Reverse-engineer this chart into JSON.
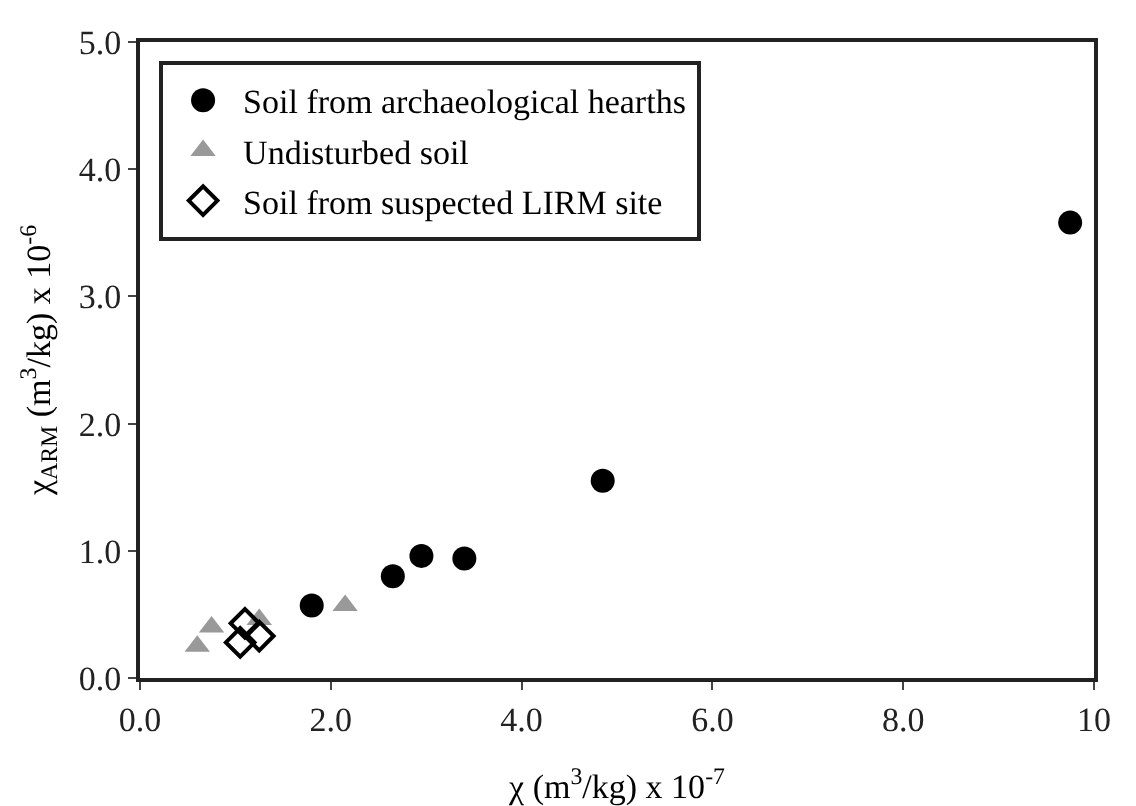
{
  "chart_data": {
    "type": "scatter",
    "xlabel": "χ (m$^{3}$/kg) x 10$^{-7}$",
    "ylabel": "χ$_{ARM}$ (m$^{3}$/kg) x 10$^{-6}$",
    "xlim": [
      0,
      10
    ],
    "ylim": [
      0,
      5
    ],
    "xticks": [
      {
        "value": 0,
        "label": "0.0"
      },
      {
        "value": 2,
        "label": "2.0"
      },
      {
        "value": 4,
        "label": "4.0"
      },
      {
        "value": 6,
        "label": "6.0"
      },
      {
        "value": 8,
        "label": "8.0"
      },
      10
    ],
    "yticks": [
      {
        "value": 0,
        "label": "0.0"
      },
      {
        "value": 1,
        "label": "1.0"
      },
      {
        "value": 2,
        "label": "2.0"
      },
      {
        "value": 3,
        "label": "3.0"
      },
      {
        "value": 4,
        "label": "4.0"
      },
      {
        "value": 5,
        "label": "5.0"
      }
    ],
    "grid": false,
    "legend": "top left",
    "series": [
      {
        "name": "Soil from archaeological hearths",
        "color": "#000000",
        "marker": "circle",
        "x": [
          1.8,
          2.65,
          2.95,
          3.4,
          4.85,
          9.75
        ],
        "values": [
          0.57,
          0.8,
          0.96,
          0.94,
          1.55,
          3.58
        ]
      },
      {
        "name": "Undisturbed soil",
        "color": "#999999",
        "marker": "triangle",
        "x": [
          0.6,
          0.75,
          1.25,
          2.15
        ],
        "values": [
          0.25,
          0.4,
          0.46,
          0.57
        ]
      },
      {
        "name": "Soil from suspected LIRM site",
        "color": "#000000",
        "marker": "diamond",
        "x": [
          1.05,
          1.1,
          1.25
        ],
        "values": [
          0.28,
          0.43,
          0.33
        ]
      }
    ]
  }
}
